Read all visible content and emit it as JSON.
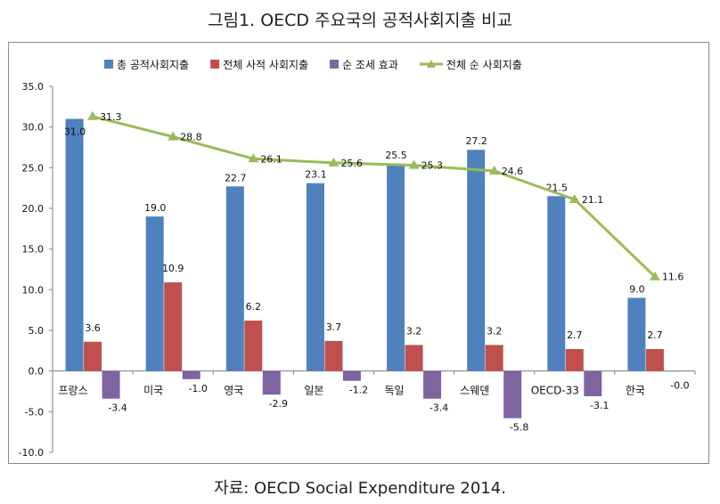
{
  "chart_data": {
    "type": "bar",
    "title": "그림1. OECD 주요국의 공적사회지출 비교",
    "source": "자료: OECD Social Expenditure 2014.",
    "categories": [
      "프랑스",
      "미국",
      "영국",
      "일본",
      "독일",
      "스웨덴",
      "OECD-33",
      "한국"
    ],
    "ylim": [
      -10,
      35
    ],
    "yticks": [
      "-10.0",
      "-5.0",
      "0.0",
      "5.0",
      "10.0",
      "15.0",
      "20.0",
      "25.0",
      "30.0",
      "35.0"
    ],
    "legend_position": "top",
    "series": [
      {
        "name": "총 공적사회지출",
        "kind": "bar",
        "color": "#4f81bd",
        "values": [
          31.0,
          19.0,
          22.7,
          23.1,
          25.5,
          27.2,
          21.5,
          9.0
        ],
        "labels": [
          "31.0",
          "19.0",
          "22.7",
          "23.1",
          "25.5",
          "27.2",
          "21.5",
          "9.0"
        ]
      },
      {
        "name": "전체 사적 사회지출",
        "kind": "bar",
        "color": "#c0504d",
        "values": [
          3.6,
          10.9,
          6.2,
          3.7,
          3.2,
          3.2,
          2.7,
          2.7
        ],
        "labels": [
          "3.6",
          "10.9",
          "6.2",
          "3.7",
          "3.2",
          "3.2",
          "2.7",
          "2.7"
        ]
      },
      {
        "name": "순 조세 효과",
        "kind": "bar",
        "color": "#8064a2",
        "values": [
          -3.4,
          -1.0,
          -2.9,
          -1.2,
          -3.4,
          -5.8,
          -3.1,
          0.0
        ],
        "labels": [
          "-3.4",
          "-1.0",
          "-2.9",
          "-1.2",
          "-3.4",
          "-5.8",
          "-3.1",
          "-0.0"
        ]
      },
      {
        "name": "전체 순 사회지출",
        "kind": "line",
        "color": "#9bbb59",
        "values": [
          31.3,
          28.8,
          26.1,
          25.6,
          25.3,
          24.6,
          21.1,
          11.6
        ],
        "labels": [
          "31.3",
          "28.8",
          "26.1",
          "25.6",
          "25.3",
          "24.6",
          "21.1",
          "11.6"
        ]
      }
    ]
  }
}
